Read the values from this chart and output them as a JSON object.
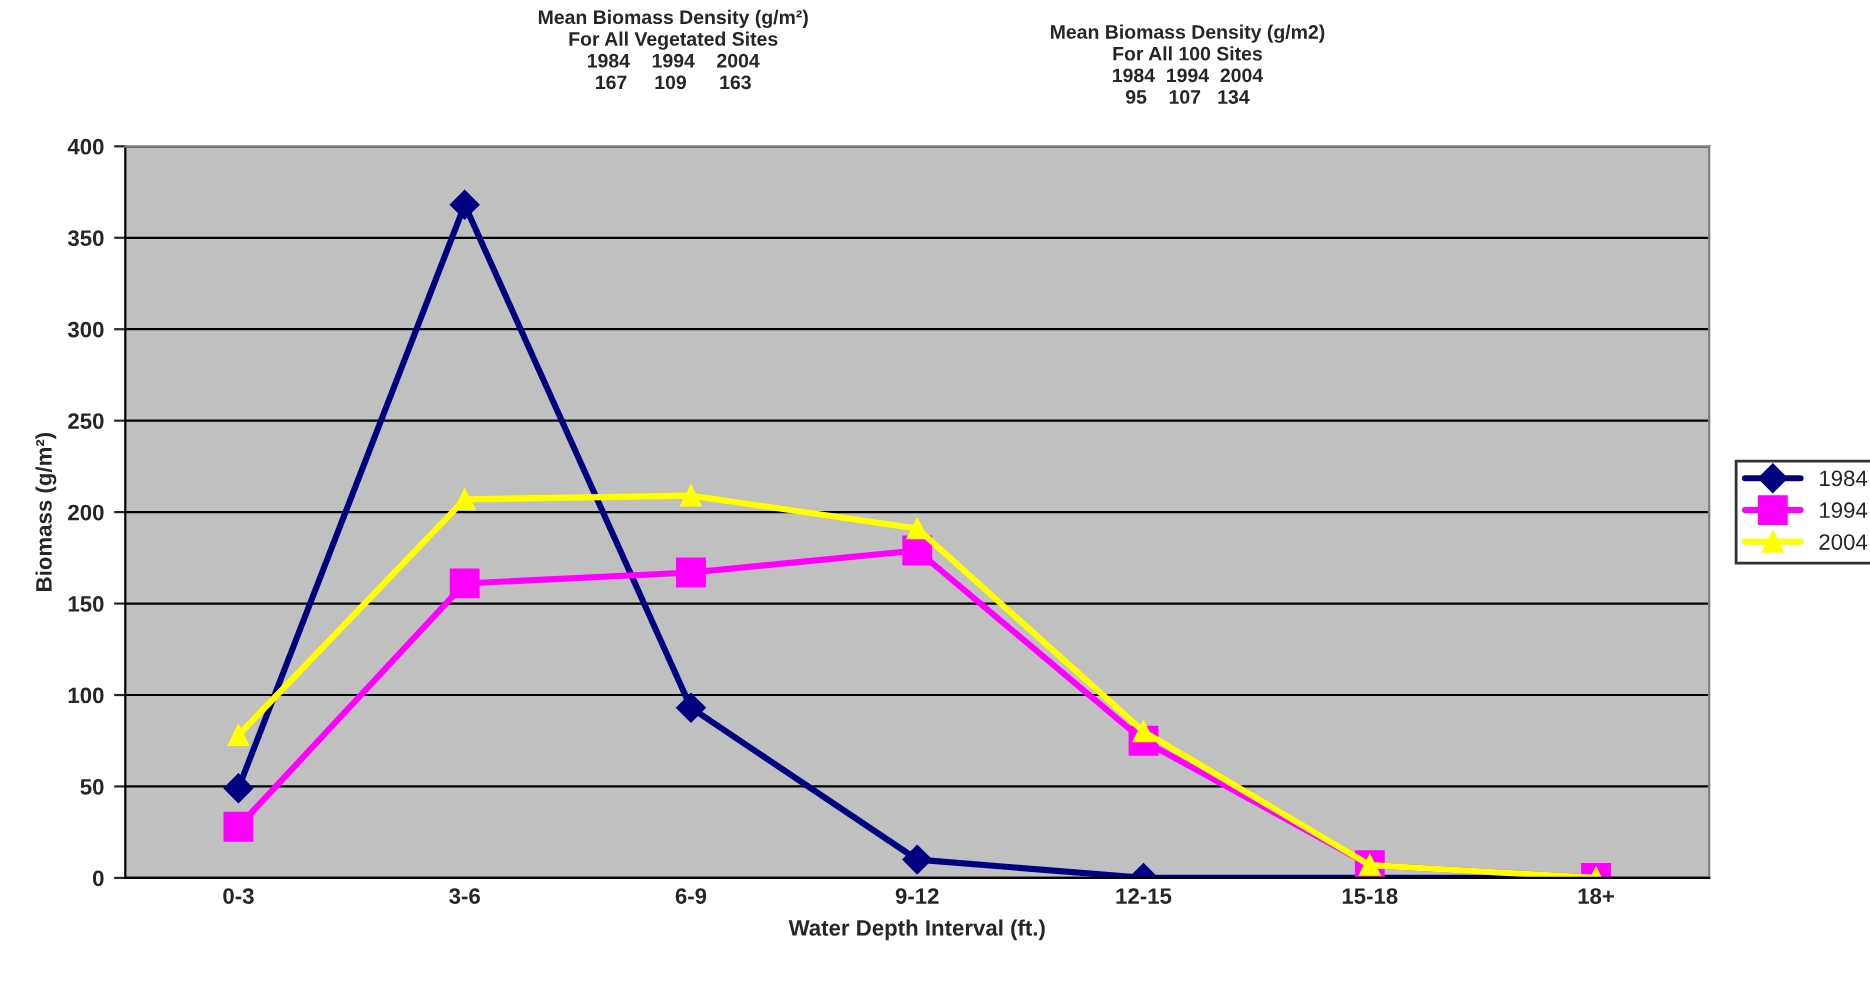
{
  "chart_data": {
    "type": "line",
    "xlabel": "Water Depth Interval (ft.)",
    "ylabel": "Biomass (g/m²)",
    "categories": [
      "0-3",
      "3-6",
      "6-9",
      "9-12",
      "12-15",
      "15-18",
      "18+"
    ],
    "series": [
      {
        "name": "1984",
        "color": "#000080",
        "marker": "diamond",
        "values": [
          49,
          368,
          93,
          10,
          0,
          0,
          0
        ]
      },
      {
        "name": "1994",
        "color": "#ff00ff",
        "marker": "square",
        "values": [
          28,
          161,
          167,
          179,
          75,
          7,
          0
        ]
      },
      {
        "name": "2004",
        "color": "#ffff00",
        "marker": "triangle",
        "values": [
          78,
          207,
          209,
          191,
          80,
          7,
          0
        ]
      }
    ],
    "ylim": [
      0,
      400
    ],
    "yticks": [
      0,
      50,
      100,
      150,
      200,
      250,
      300,
      350,
      400
    ],
    "grid": "y",
    "legend": "right",
    "annotations": [
      "Mean Biomass Density (g/m²)\nFor All Vegetated Sites\n1984    1994    2004\n167     109      163",
      "Mean Biomass Density (g/m2)\nFor All 100 Sites\n1984  1994  2004\n95    107   134"
    ]
  }
}
